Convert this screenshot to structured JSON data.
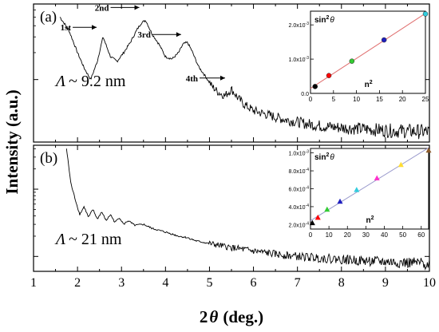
{
  "figure": {
    "ylabel": "Intensity (a.u.)",
    "xlabel_main": "2",
    "xlabel_symbol": "θ",
    "xlabel_unit": "(deg.)"
  },
  "chart_data": [
    {
      "type": "line",
      "panel_label": "(a)",
      "annotation_prefix": "Λ",
      "annotation_value": "~ 9.2 nm",
      "xlim": [
        1,
        10
      ],
      "y_scale": "log",
      "xticks": [
        1,
        2,
        3,
        4,
        5,
        6,
        7,
        8,
        9,
        10
      ],
      "peaks": [
        {
          "label": "1st",
          "x": 2.58
        },
        {
          "label": "2nd",
          "x": 3.55
        },
        {
          "label": "3rd",
          "x": 4.5
        },
        {
          "label": "4th",
          "x": 5.5
        }
      ],
      "series": [
        {
          "x": [
            1.6,
            1.8,
            2.0,
            2.15,
            2.3,
            2.45,
            2.58,
            2.75,
            2.9,
            3.05,
            3.2,
            3.35,
            3.45,
            3.55,
            3.7,
            3.85,
            4.0,
            4.15,
            4.3,
            4.4,
            4.5,
            4.6,
            4.75,
            4.9,
            5.05,
            5.2,
            5.35,
            5.5,
            5.65,
            5.8,
            6.0,
            6.2,
            6.5,
            6.8,
            7.2,
            7.6,
            8.0,
            8.5,
            9.0,
            9.5,
            10.0
          ],
          "y": [
            5.0,
            3.6,
            2.0,
            1.35,
            1.0,
            1.6,
            3.0,
            1.8,
            1.6,
            2.0,
            2.6,
            3.6,
            4.3,
            4.6,
            3.2,
            2.5,
            1.8,
            1.7,
            2.0,
            2.5,
            2.6,
            2.1,
            1.4,
            1.1,
            0.85,
            0.72,
            0.66,
            0.78,
            0.62,
            0.52,
            0.45,
            0.42,
            0.38,
            0.35,
            0.32,
            0.3,
            0.29,
            0.28,
            0.27,
            0.265,
            0.26
          ]
        }
      ],
      "inset": {
        "ylabel_base": "sin",
        "ylabel_exp": "2",
        "ylabel_sym": "θ",
        "xlabel_base": "n",
        "xlabel_exp": "2",
        "xticks": [
          "0",
          "5",
          "10",
          "15",
          "20",
          "25"
        ],
        "xlim": [
          0,
          25
        ],
        "ylim": [
          0,
          0.0024
        ],
        "yticks": [
          {
            "value": 0.0,
            "label": "0.0"
          },
          {
            "value": 0.001,
            "label": "1.0x10",
            "exp": "-3"
          },
          {
            "value": 0.002,
            "label": "2.0x10",
            "exp": "-3"
          }
        ],
        "points": [
          {
            "x": 1,
            "y": 0.0002,
            "color": "#000000"
          },
          {
            "x": 4,
            "y": 0.00052,
            "color": "#ff0000"
          },
          {
            "x": 9,
            "y": 0.00094,
            "color": "#33cc33"
          },
          {
            "x": 16,
            "y": 0.00156,
            "color": "#1f1fbf"
          },
          {
            "x": 25,
            "y": 0.00232,
            "color": "#33ccdd"
          }
        ],
        "marker": "circle",
        "fit_color": "#e07070"
      }
    },
    {
      "type": "line",
      "panel_label": "(b)",
      "annotation_prefix": "Λ",
      "annotation_value": "~ 21 nm",
      "xlim": [
        1,
        10
      ],
      "y_scale": "log",
      "xticks": [
        1,
        2,
        3,
        4,
        5,
        6,
        7,
        8,
        9,
        10
      ],
      "xtick_labels": [
        "1",
        "2",
        "3",
        "4",
        "5",
        "6",
        "7",
        "8",
        "9",
        "10"
      ],
      "series": [
        {
          "x": [
            1.75,
            1.85,
            1.95,
            2.05,
            2.15,
            2.25,
            2.35,
            2.45,
            2.55,
            2.65,
            2.75,
            2.85,
            2.95,
            3.05,
            3.15,
            3.3,
            3.5,
            3.7,
            3.9,
            4.1,
            4.3,
            4.5,
            4.7,
            5.0,
            5.3,
            5.6,
            6.0,
            6.5,
            7.0,
            7.5,
            8.0,
            8.5,
            9.0,
            9.5,
            10.0
          ],
          "y": [
            40,
            12,
            7,
            4.2,
            5.5,
            3.8,
            5.0,
            3.6,
            4.6,
            3.4,
            4.2,
            3.2,
            3.8,
            3.0,
            3.4,
            2.9,
            3.0,
            2.6,
            2.4,
            2.2,
            2.0,
            1.9,
            1.7,
            1.55,
            1.42,
            1.32,
            1.2,
            1.08,
            1.0,
            0.95,
            0.9,
            0.86,
            0.83,
            0.8,
            0.78
          ]
        }
      ],
      "inset": {
        "ylabel_base": "sin",
        "ylabel_exp": "2",
        "ylabel_sym": "θ",
        "xlabel_base": "n",
        "xlabel_exp": "2",
        "xticks": [
          "0",
          "10",
          "20",
          "30",
          "40",
          "50",
          "60"
        ],
        "xlim": [
          0,
          64
        ],
        "ylim": [
          0.00015,
          0.00105
        ],
        "yticks": [
          {
            "value": 0.0002,
            "label": "2.0x10",
            "exp": "-4"
          },
          {
            "value": 0.0004,
            "label": "4.0x10",
            "exp": "-4"
          },
          {
            "value": 0.0006,
            "label": "6.0x10",
            "exp": "-4"
          },
          {
            "value": 0.0008,
            "label": "8.0x10",
            "exp": "-4"
          },
          {
            "value": 0.001,
            "label": "1.0x10",
            "exp": "-3"
          }
        ],
        "points": [
          {
            "x": 1,
            "y": 0.00022,
            "color": "#000000"
          },
          {
            "x": 4,
            "y": 0.00028,
            "color": "#ff0000"
          },
          {
            "x": 9,
            "y": 0.00037,
            "color": "#33cc33"
          },
          {
            "x": 16,
            "y": 0.00046,
            "color": "#1f1fbf"
          },
          {
            "x": 25,
            "y": 0.00059,
            "color": "#33ccdd"
          },
          {
            "x": 36,
            "y": 0.00072,
            "color": "#ff33cc"
          },
          {
            "x": 49,
            "y": 0.00087,
            "color": "#ffdd33"
          },
          {
            "x": 64,
            "y": 0.00103,
            "color": "#8b5a2b"
          }
        ],
        "marker": "triangle",
        "fit_color": "#9999cc"
      }
    }
  ]
}
